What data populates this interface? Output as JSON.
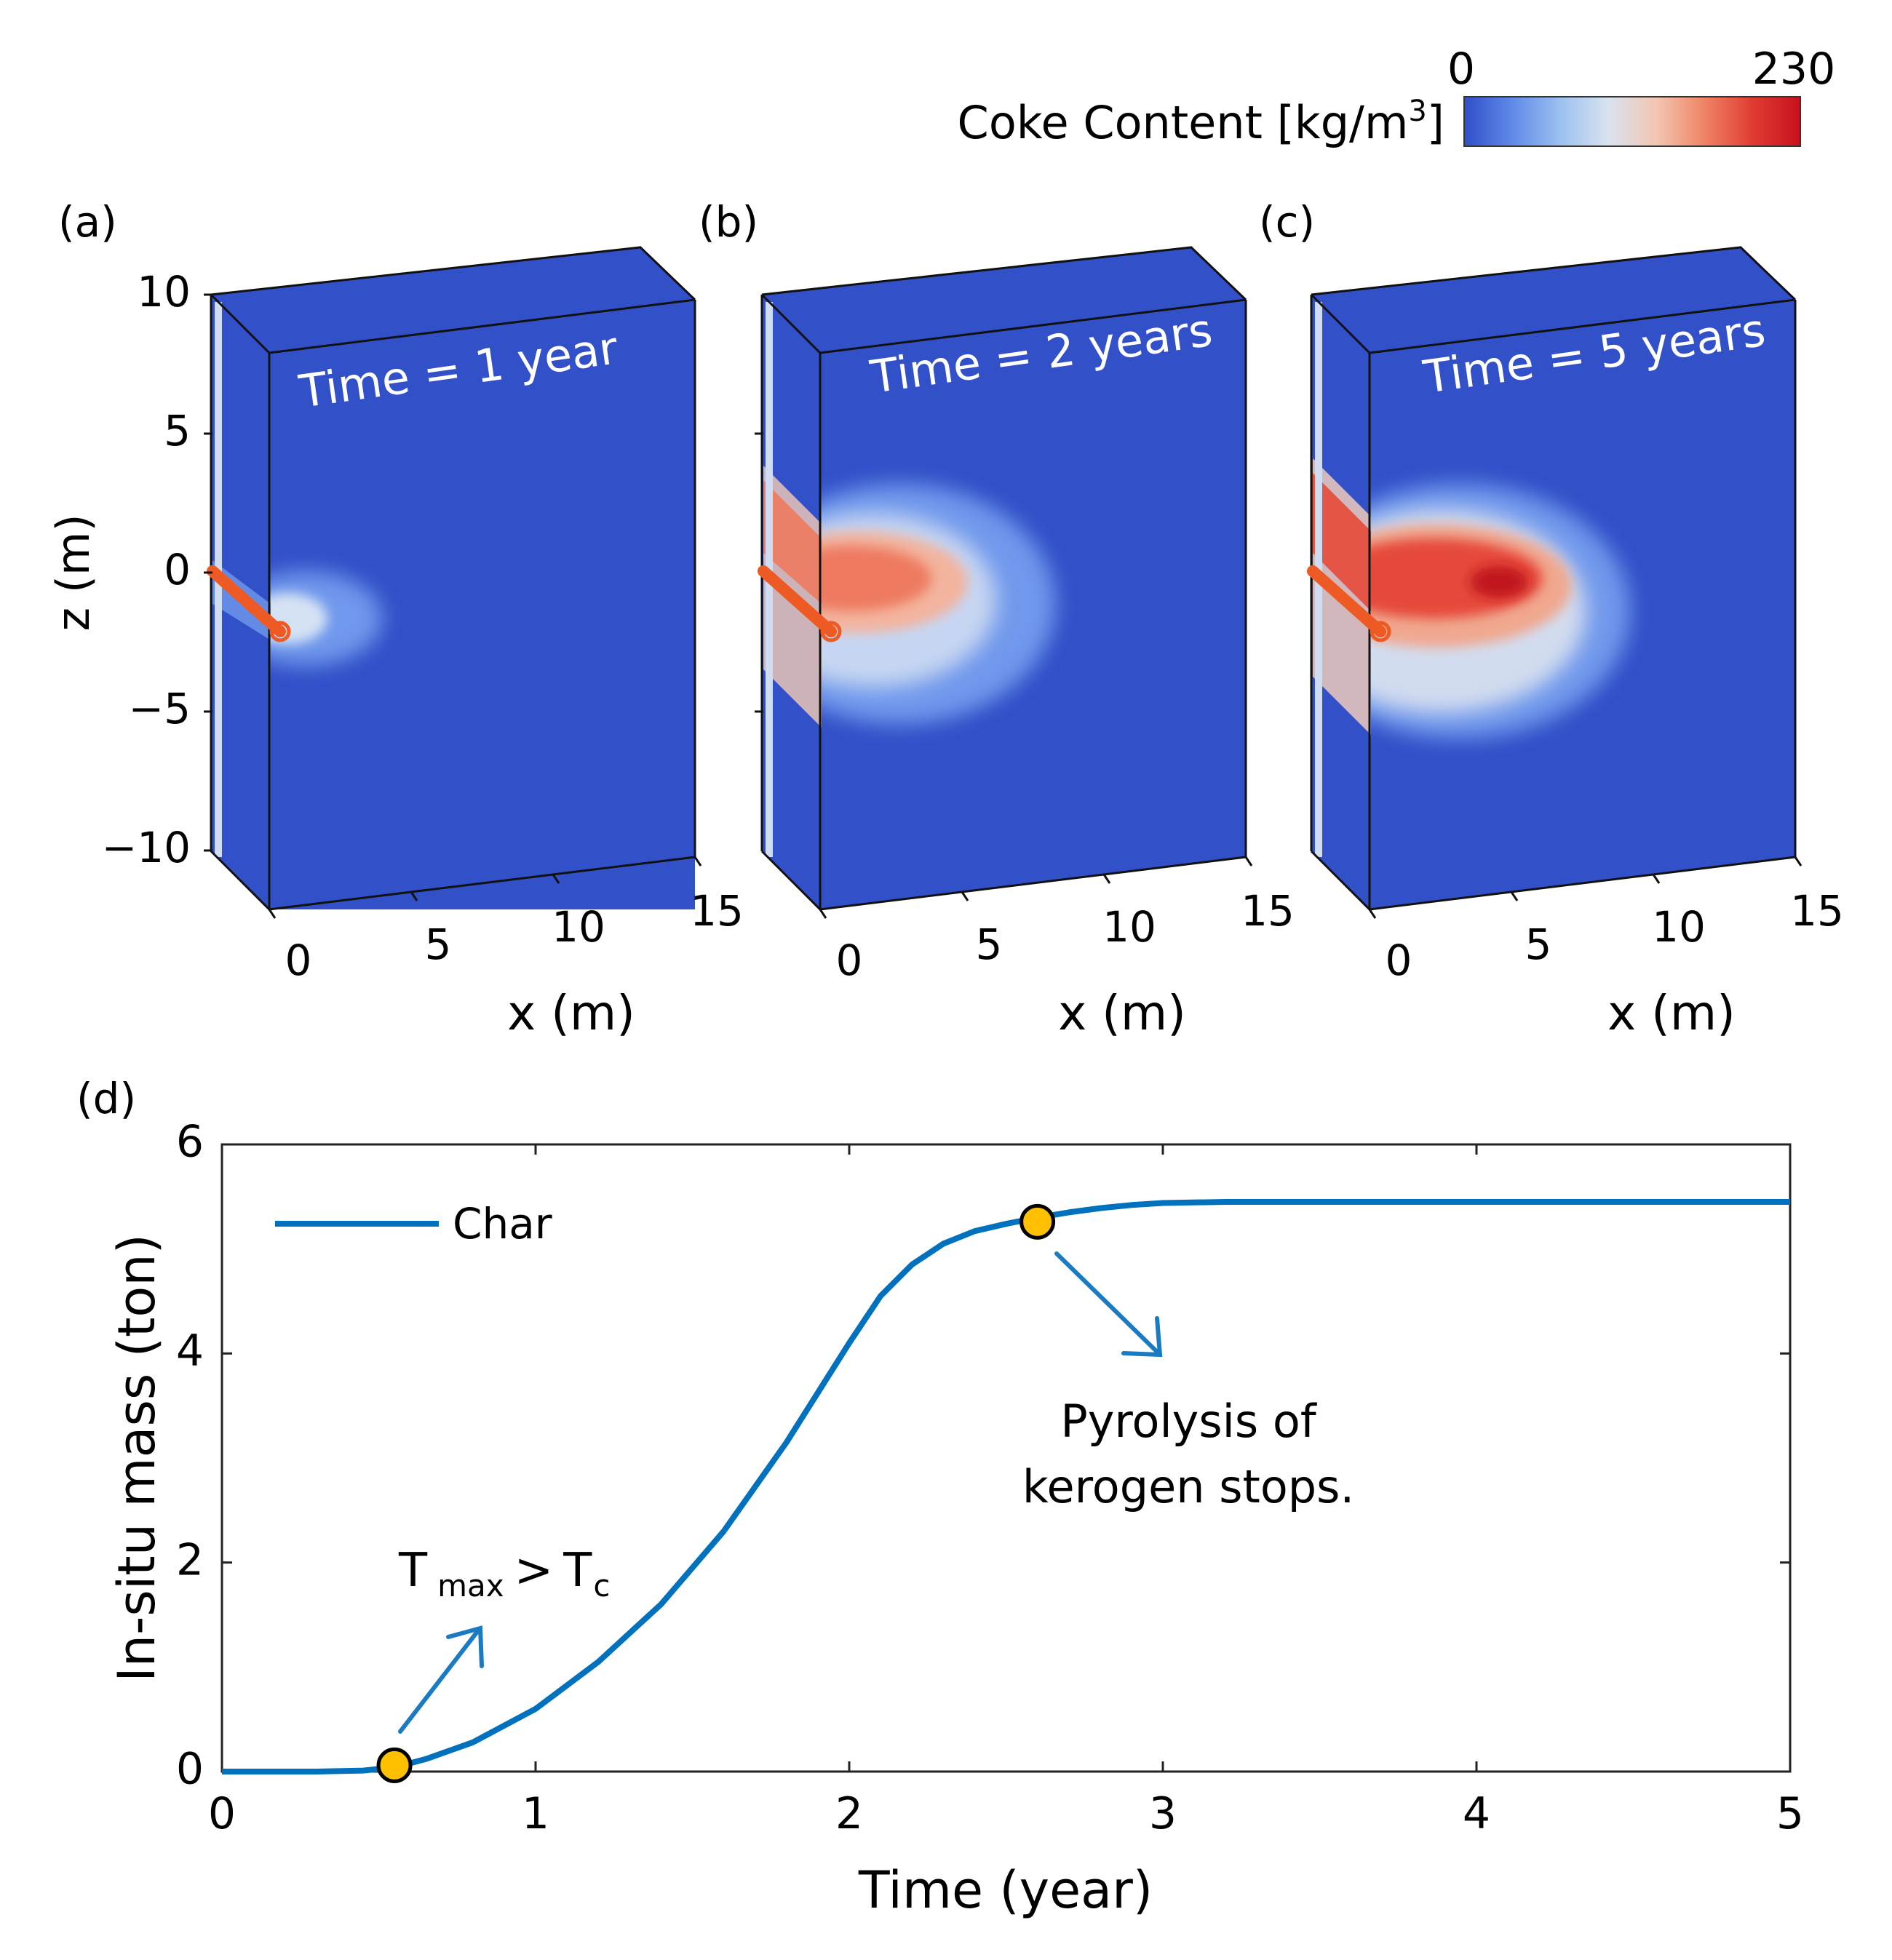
{
  "colorbar": {
    "label": "Coke Content [kg/m",
    "label_sup": "3",
    "label_close": "]",
    "min_label": "0",
    "max_label": "230",
    "colors": [
      "#2f4fc8",
      "#5f8ae8",
      "#9cc0f0",
      "#d9e3ef",
      "#f3c6b2",
      "#f08466",
      "#e03c32",
      "#c8101e"
    ]
  },
  "panels": [
    {
      "letter": "(a)",
      "time_label": "Time = 1 year"
    },
    {
      "letter": "(b)",
      "time_label": "Time = 2 years"
    },
    {
      "letter": "(c)",
      "time_label": "Time = 5 years"
    }
  ],
  "panel_axes": {
    "z_label": "z (m)",
    "x_label": "x (m)",
    "z_ticks": [
      "10",
      "5",
      "0",
      "−5",
      "−10"
    ],
    "x_ticks": [
      "0",
      "5",
      "10",
      "15"
    ]
  },
  "annotations": {
    "tmax_T": "T",
    "tmax_sub": "max",
    "tmax_gt": ">",
    "tc_T": "T",
    "tc_sub": "c",
    "pyrolysis_line1": "Pyrolysis of",
    "pyrolysis_line2": "kerogen stops."
  },
  "chart_data": [
    {
      "type": "heatmap",
      "title": "(a)",
      "annotation": "Time = 1 year",
      "xlabel": "x (m)",
      "ylabel": "z (m)",
      "xlim": [
        0,
        15
      ],
      "ylim": [
        -10,
        10
      ],
      "colorbar": {
        "label": "Coke Content [kg/m3]",
        "range": [
          0,
          230
        ]
      }
    },
    {
      "type": "heatmap",
      "title": "(b)",
      "annotation": "Time = 2 years",
      "xlabel": "x (m)",
      "ylabel": "z (m)",
      "xlim": [
        0,
        15
      ],
      "ylim": [
        -10,
        10
      ],
      "colorbar": {
        "label": "Coke Content [kg/m3]",
        "range": [
          0,
          230
        ]
      }
    },
    {
      "type": "heatmap",
      "title": "(c)",
      "annotation": "Time = 5 years",
      "xlabel": "x (m)",
      "ylabel": "z (m)",
      "xlim": [
        0,
        15
      ],
      "ylim": [
        -10,
        10
      ],
      "colorbar": {
        "label": "Coke Content [kg/m3]",
        "range": [
          0,
          230
        ]
      }
    },
    {
      "type": "line",
      "title": "(d)",
      "xlabel": "Time (year)",
      "ylabel": "In-situ mass (ton)",
      "xlim": [
        0,
        5
      ],
      "ylim": [
        0,
        6
      ],
      "xticks": [
        "0",
        "1",
        "2",
        "3",
        "4",
        "5"
      ],
      "yticks": [
        "0",
        "2",
        "4",
        "6"
      ],
      "legend": "top-left",
      "series": [
        {
          "name": "Char",
          "color": "#0072bd",
          "x": [
            0,
            0.3,
            0.45,
            0.55,
            0.65,
            0.8,
            1.0,
            1.2,
            1.4,
            1.6,
            1.8,
            2.0,
            2.1,
            2.2,
            2.3,
            2.4,
            2.5,
            2.6,
            2.7,
            2.8,
            2.9,
            3.0,
            3.2,
            3.5,
            4.0,
            4.5,
            5.0
          ],
          "values": [
            0,
            0,
            0.01,
            0.04,
            0.12,
            0.28,
            0.6,
            1.05,
            1.6,
            2.3,
            3.15,
            4.1,
            4.55,
            4.85,
            5.05,
            5.17,
            5.24,
            5.3,
            5.35,
            5.39,
            5.42,
            5.44,
            5.45,
            5.45,
            5.45,
            5.45,
            5.45
          ]
        }
      ],
      "markers": [
        {
          "x": 0.55,
          "y": 0.06,
          "color": "#ffc000"
        },
        {
          "x": 2.6,
          "y": 5.26,
          "color": "#ffc000"
        }
      ]
    }
  ]
}
